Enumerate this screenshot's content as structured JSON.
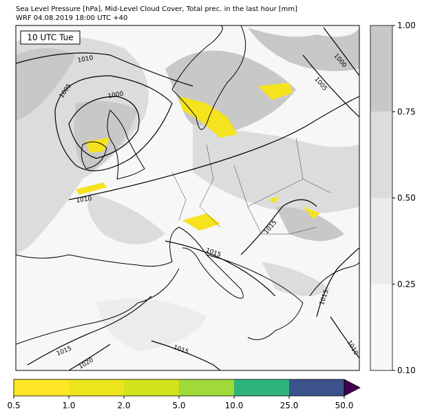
{
  "header": {
    "line1": "Sea Level Pressure [hPa], Mid-Level Cloud Cover, Total prec. in the last hour [mm]",
    "line2": "WRF 04.08.2019 18:00 UTC +40"
  },
  "map": {
    "time_label": "10 UTC Tue",
    "contour_labels": [
      "1010",
      "1005",
      "1000",
      "1000",
      "1005",
      "1010",
      "1015",
      "1015",
      "1015",
      "1015",
      "1020",
      "1015",
      "1010"
    ]
  },
  "cloud_colorbar": {
    "levels": [
      {
        "value": 0.1,
        "label": "0.10"
      },
      {
        "value": 0.25,
        "label": "0.25"
      },
      {
        "value": 0.5,
        "label": "0.50"
      },
      {
        "value": 0.75,
        "label": "0.75"
      },
      {
        "value": 1.0,
        "label": "1.00"
      }
    ],
    "colors": [
      "#f7f7f7",
      "#ebebeb",
      "#dcdcdc",
      "#c8c8c8"
    ]
  },
  "precip_colorbar": {
    "levels": [
      0.5,
      {
        "value": 1.0,
        "label": "1.0"
      },
      {
        "value": 2.0,
        "label": "2.0"
      },
      {
        "value": 5.0,
        "label": "5.0"
      },
      {
        "value": 10.0,
        "label": "10.0"
      },
      {
        "value": 25.0,
        "label": "25.0"
      },
      {
        "value": 50.0,
        "label": "50.0"
      }
    ],
    "colors": [
      "#fde725",
      "#ede51b",
      "#d2e21b",
      "#a0da39",
      "#2eb37c",
      "#3b528b"
    ],
    "extend_color": "#440154"
  }
}
